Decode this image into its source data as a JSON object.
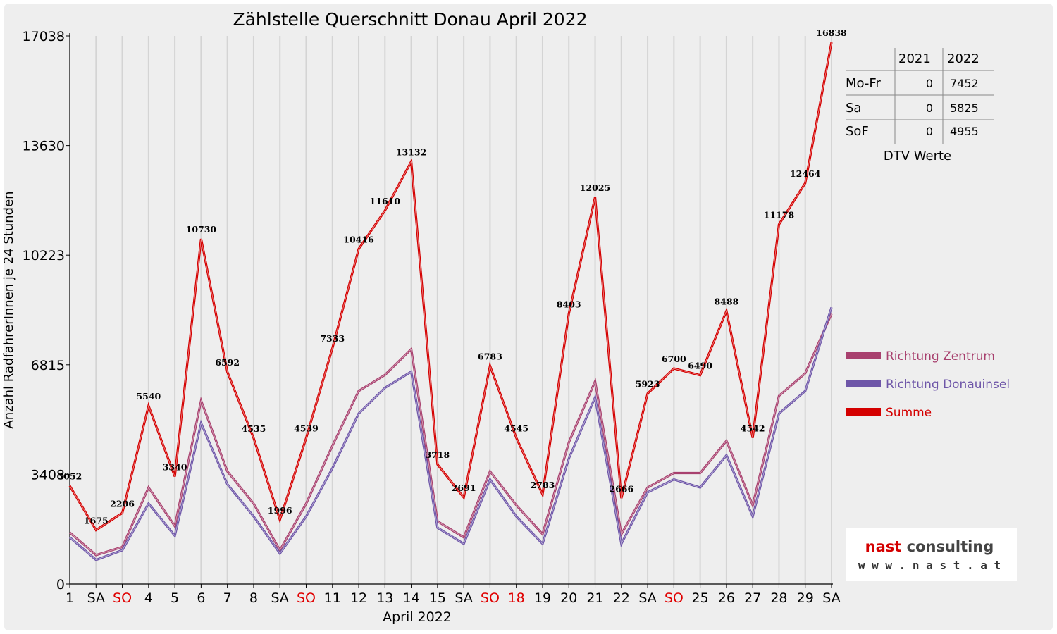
{
  "chart_data": {
    "type": "line",
    "title": "Zählstelle Querschnitt Donau April 2022",
    "xlabel": "April 2022",
    "ylabel": "Anzahl RadfahrerInnen je 24 Stunden",
    "ylim": [
      0,
      17038
    ],
    "yticks": [
      0,
      3408,
      6815,
      10223,
      13630,
      17038
    ],
    "grid": "vertical",
    "legend_position": "right",
    "categories": [
      "1",
      "SA",
      "SO",
      "4",
      "5",
      "6",
      "7",
      "8",
      "SA",
      "SO",
      "11",
      "12",
      "13",
      "14",
      "15",
      "SA",
      "SO",
      "18",
      "19",
      "20",
      "21",
      "22",
      "SA",
      "SO",
      "25",
      "26",
      "27",
      "28",
      "29",
      "SA"
    ],
    "category_colors": [
      "#000000",
      "#000000",
      "#e00000",
      "#000000",
      "#000000",
      "#000000",
      "#000000",
      "#000000",
      "#000000",
      "#e00000",
      "#000000",
      "#000000",
      "#000000",
      "#000000",
      "#000000",
      "#000000",
      "#e00000",
      "#e00000",
      "#000000",
      "#000000",
      "#000000",
      "#000000",
      "#000000",
      "#e00000",
      "#000000",
      "#000000",
      "#000000",
      "#000000",
      "#000000",
      "#000000"
    ],
    "series": [
      {
        "name": "Richtung Zentrum",
        "color": "#a8406e",
        "values": [
          1600,
          900,
          1150,
          3000,
          1800,
          5700,
          3500,
          2500,
          1050,
          2500,
          4300,
          6000,
          6500,
          7300,
          1950,
          1450,
          3500,
          2450,
          1550,
          4400,
          6300,
          1550,
          3000,
          3450,
          3450,
          4450,
          2450,
          5850,
          6550,
          8400
        ]
      },
      {
        "name": "Richtung Donauinsel",
        "color": "#6e56a8",
        "values": [
          1450,
          750,
          1050,
          2500,
          1500,
          5000,
          3100,
          2100,
          950,
          2100,
          3600,
          5300,
          6100,
          6600,
          1750,
          1250,
          3250,
          2100,
          1250,
          3900,
          5800,
          1250,
          2850,
          3250,
          3000,
          4000,
          2100,
          5300,
          6000,
          8600
        ]
      },
      {
        "name": "Summe",
        "color": "#d40000",
        "values": [
          3052,
          1675,
          2206,
          5540,
          3340,
          10730,
          6592,
          4535,
          1996,
          4539,
          7333,
          10416,
          11610,
          13132,
          3718,
          2691,
          6783,
          4545,
          2783,
          8403,
          12025,
          2666,
          5923,
          6700,
          6490,
          8488,
          4542,
          11178,
          12464,
          16838
        ]
      }
    ]
  },
  "dtv_table": {
    "caption": "DTV Werte",
    "columns": [
      "",
      "2021",
      "2022"
    ],
    "rows": [
      {
        "label": "Mo-Fr",
        "y2021": "0",
        "y2022": "7452"
      },
      {
        "label": "Sa",
        "y2021": "0",
        "y2022": "5825"
      },
      {
        "label": "SoF",
        "y2021": "0",
        "y2022": "4955"
      }
    ]
  },
  "logo": {
    "line1": "nast consulting",
    "line2": "w w w . n a s t . a t"
  }
}
